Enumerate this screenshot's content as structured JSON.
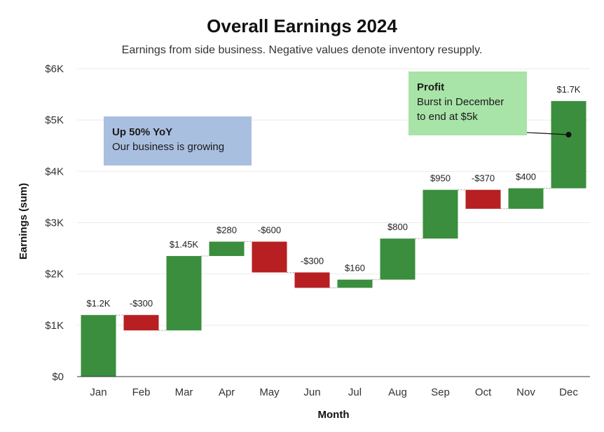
{
  "chart_data": {
    "type": "waterfall",
    "title": "Overall Earnings 2024",
    "subtitle": "Earnings from side business. Negative values denote inventory resupply.",
    "xlabel": "Month",
    "ylabel": "Earnings (sum)",
    "categories": [
      "Jan",
      "Feb",
      "Mar",
      "Apr",
      "May",
      "Jun",
      "Jul",
      "Aug",
      "Sep",
      "Oct",
      "Nov",
      "Dec"
    ],
    "values": [
      1200,
      -300,
      1450,
      280,
      -600,
      -300,
      160,
      800,
      950,
      -370,
      400,
      1700
    ],
    "data_labels": [
      "$1.2K",
      "-$300",
      "$1.45K",
      "$280",
      "-$600",
      "-$300",
      "$160",
      "$800",
      "$950",
      "-$370",
      "$400",
      "$1.7K"
    ],
    "ylim": [
      0,
      6000
    ],
    "yticks": [
      0,
      1000,
      2000,
      3000,
      4000,
      5000,
      6000
    ],
    "ytick_labels": [
      "$0",
      "$1K",
      "$2K",
      "$3K",
      "$4K",
      "$5K",
      "$6K"
    ],
    "colors": {
      "positive": "#3a8e3d",
      "negative": "#b71f22",
      "grid": "#ebebeb",
      "connector": "#9a9a9a"
    },
    "grid": true,
    "annotations": [
      {
        "id": "yoy",
        "title": "Up 50% YoY",
        "lines": [
          "Our business is growing"
        ],
        "color": "#a9bfe0"
      },
      {
        "id": "profit",
        "title": "Profit",
        "lines": [
          "Burst in December",
          "to end at $5k"
        ],
        "color": "#a8e3a8",
        "points_to": "Dec"
      }
    ]
  }
}
